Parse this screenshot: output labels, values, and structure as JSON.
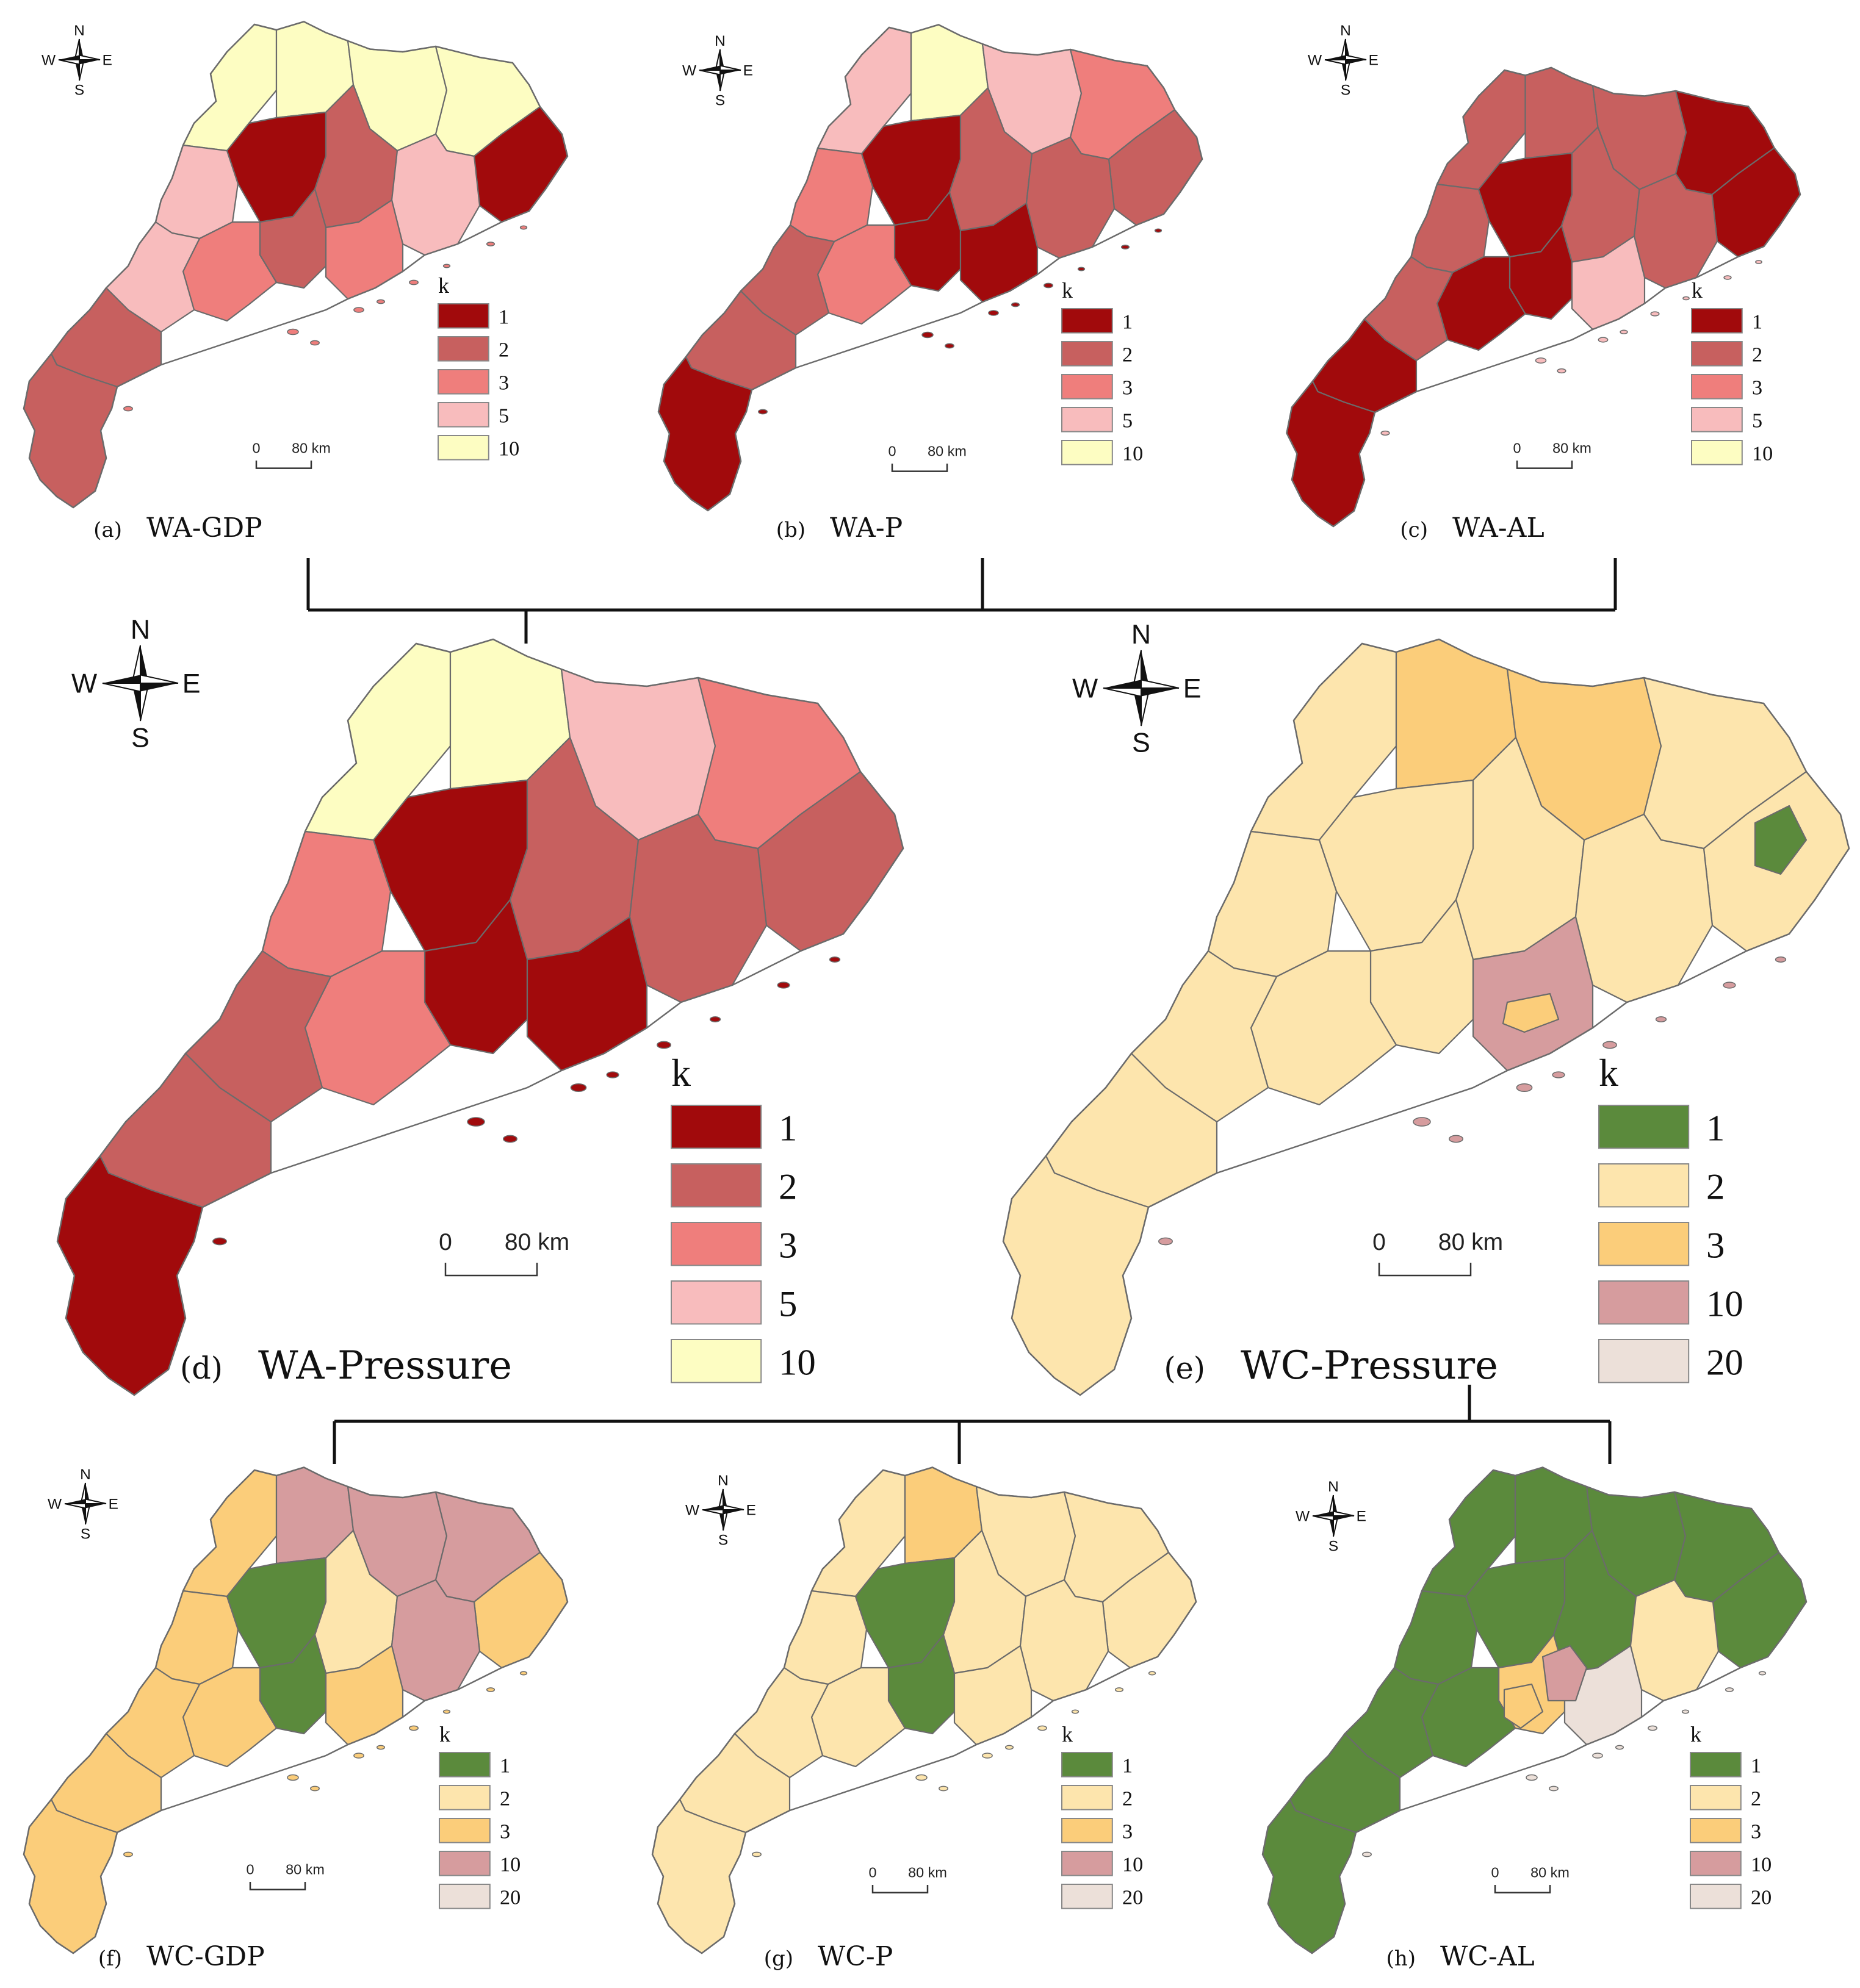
{
  "figure": {
    "compass_labels": {
      "north": "N",
      "south": "S",
      "west": "W",
      "east": "E"
    },
    "scale_labels": {
      "zero": "0",
      "distance": "80 km"
    },
    "legend_title": "k",
    "wa_palette": {
      "1": "#a10a0c",
      "2": "#c7605f",
      "3": "#ef7e7c",
      "5": "#f8bcbd",
      "10": "#fdfdc2"
    },
    "wc_palette": {
      "1": "#5b8a3c",
      "2": "#fde5ad",
      "3": "#fbcd7a",
      "10": "#d69c9e",
      "20": "#ece0d9"
    },
    "wa_classes": [
      "1",
      "2",
      "3",
      "5",
      "10"
    ],
    "wc_classes": [
      "1",
      "2",
      "3",
      "10",
      "20"
    ],
    "panels": [
      {
        "id": "a",
        "letter": "(a)",
        "title": "WA-GDP",
        "scheme": "wa",
        "regions": [
          "10",
          "10",
          "10",
          "10",
          "5",
          "1",
          "2",
          "2",
          "1",
          "5",
          "3",
          "5",
          "2",
          "2",
          "3"
        ]
      },
      {
        "id": "b",
        "letter": "(b)",
        "title": "WA-P",
        "scheme": "wa",
        "regions": [
          "5",
          "10",
          "5",
          "3",
          "3",
          "1",
          "2",
          "1",
          "2",
          "2",
          "3",
          "2",
          "2",
          "1",
          "1"
        ]
      },
      {
        "id": "c",
        "letter": "(c)",
        "title": "WA-AL",
        "scheme": "wa",
        "regions": [
          "2",
          "2",
          "2",
          "1",
          "2",
          "1",
          "2",
          "1",
          "1",
          "2",
          "1",
          "2",
          "1",
          "1",
          "5"
        ]
      },
      {
        "id": "d",
        "letter": "(d)",
        "title": "WA-Pressure",
        "scheme": "wa",
        "regions": [
          "10",
          "10",
          "5",
          "3",
          "3",
          "1",
          "2",
          "1",
          "2",
          "2",
          "3",
          "2",
          "2",
          "1",
          "1"
        ]
      },
      {
        "id": "e",
        "letter": "(e)",
        "title": "WC-Pressure",
        "scheme": "wc",
        "regions": [
          "2",
          "3",
          "3",
          "2",
          "2",
          "2",
          "2",
          "2",
          "2",
          "2",
          "2",
          "2",
          "2",
          "2",
          "10"
        ]
      },
      {
        "id": "f",
        "letter": "(f)",
        "title": "WC-GDP",
        "scheme": "wc",
        "regions": [
          "3",
          "10",
          "10",
          "10",
          "3",
          "1",
          "2",
          "1",
          "3",
          "10",
          "3",
          "3",
          "3",
          "3",
          "3"
        ]
      },
      {
        "id": "g",
        "letter": "(g)",
        "title": "WC-P",
        "scheme": "wc",
        "regions": [
          "2",
          "3",
          "2",
          "2",
          "2",
          "1",
          "2",
          "1",
          "2",
          "2",
          "2",
          "2",
          "2",
          "2",
          "2"
        ]
      },
      {
        "id": "h",
        "letter": "(h)",
        "title": "WC-AL",
        "scheme": "wc",
        "regions": [
          "1",
          "1",
          "1",
          "1",
          "1",
          "1",
          "1",
          "3",
          "1",
          "2",
          "1",
          "1",
          "1",
          "1",
          "20"
        ]
      }
    ],
    "small_areas": {
      "e": [
        {
          "class": "1"
        },
        {
          "class": "3"
        }
      ],
      "h": [
        {
          "class": "10"
        },
        {
          "class": "3"
        }
      ]
    }
  }
}
